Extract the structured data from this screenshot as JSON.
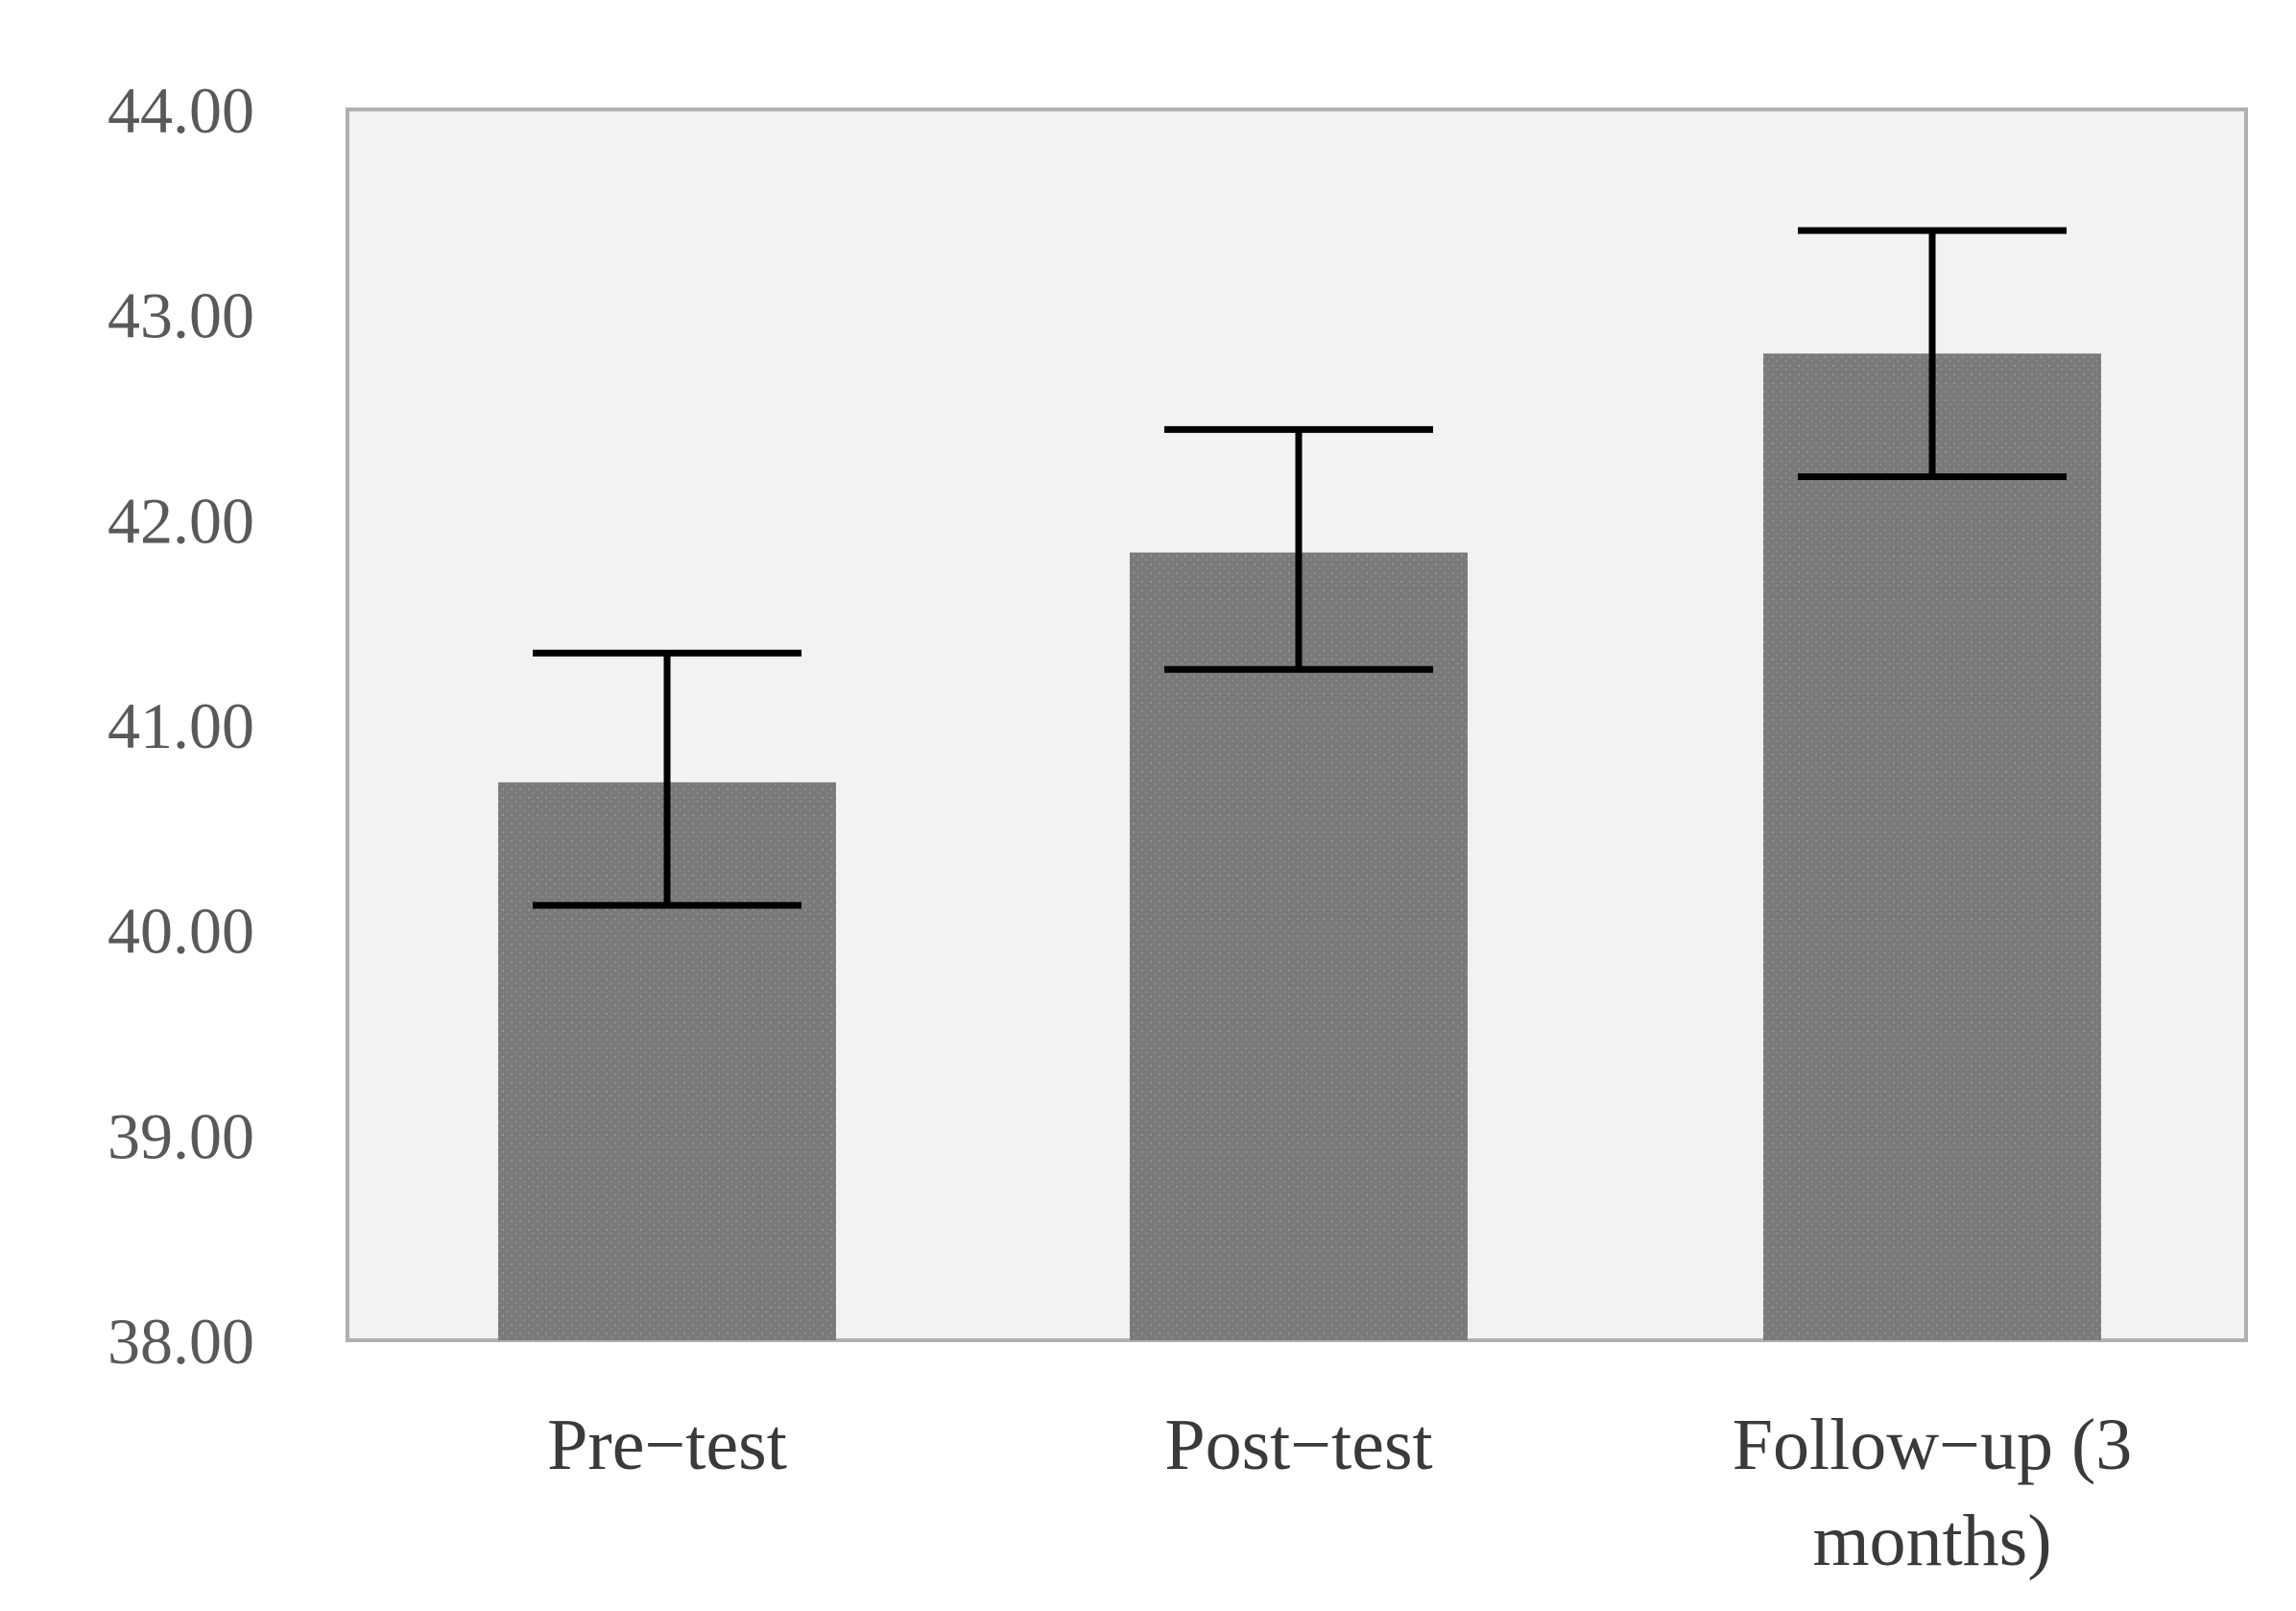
{
  "chart_data": {
    "type": "bar",
    "title": "",
    "xlabel": "",
    "ylabel": "",
    "categories": [
      "Pre−test",
      "Post−test",
      "Follow−up (3 months)"
    ],
    "category_lines": [
      [
        "Pre−test"
      ],
      [
        "Post−test"
      ],
      [
        "Follow−up (3",
        "months)"
      ]
    ],
    "values": [
      40.72,
      41.84,
      42.81
    ],
    "error_low": [
      40.12,
      41.27,
      42.21
    ],
    "error_high": [
      41.35,
      42.44,
      43.41
    ],
    "ylim": [
      38,
      44
    ],
    "yticks": [
      "38.00",
      "39.00",
      "40.00",
      "41.00",
      "42.00",
      "43.00",
      "44.00"
    ],
    "grid": false,
    "legend": "none",
    "colors": {
      "bar": "#7a7a7a",
      "plot_background": "#f2f2f2",
      "plot_border": "#b0b0b0",
      "error_bar": "#000000"
    }
  }
}
